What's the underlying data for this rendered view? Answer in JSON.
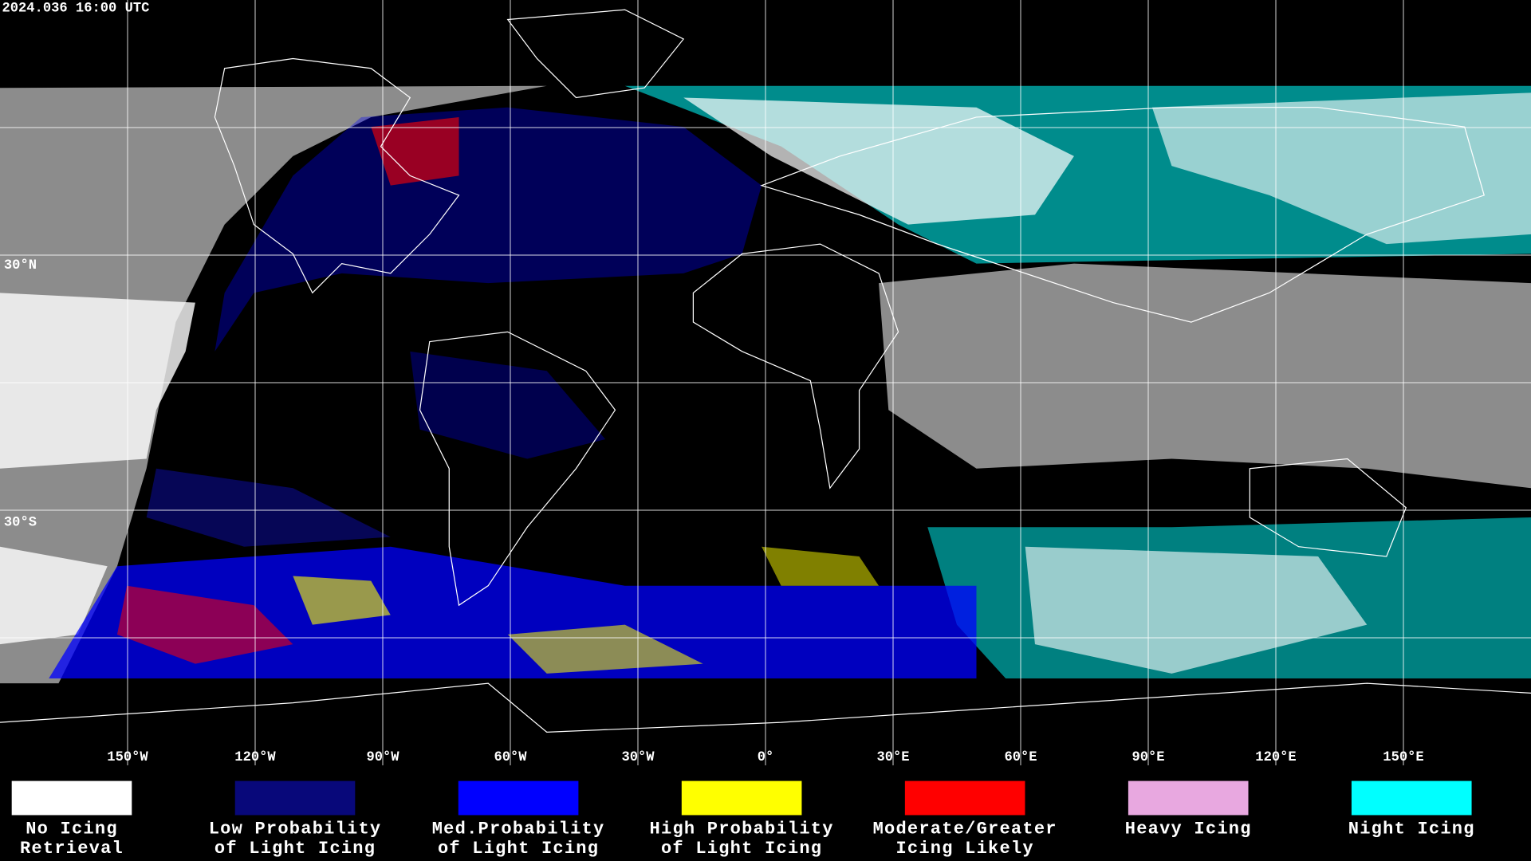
{
  "header": {
    "timestamp": "2024.036 16:00 UTC"
  },
  "grid": {
    "longitude_labels": [
      "150°W",
      "120°W",
      "90°W",
      "60°W",
      "30°W",
      "0°",
      "30°E",
      "60°E",
      "90°E",
      "120°E",
      "150°E"
    ],
    "latitude_labels": [
      "30°N",
      "30°S"
    ]
  },
  "legend": [
    {
      "color": "#ffffff",
      "label": [
        "No Icing",
        "Retrieval"
      ]
    },
    {
      "color": "#08087a",
      "label": [
        "Low Probability",
        "of Light Icing"
      ]
    },
    {
      "color": "#0000ff",
      "label": [
        "Med.Probability",
        "of Light Icing"
      ]
    },
    {
      "color": "#ffff00",
      "label": [
        "High Probability",
        "of Light Icing"
      ]
    },
    {
      "color": "#ff0000",
      "label": [
        "Moderate/Greater",
        "Icing Likely"
      ]
    },
    {
      "color": "#e8a8e0",
      "label": [
        "Heavy Icing"
      ]
    },
    {
      "color": "#00ffff",
      "label": [
        "Night Icing"
      ]
    }
  ]
}
